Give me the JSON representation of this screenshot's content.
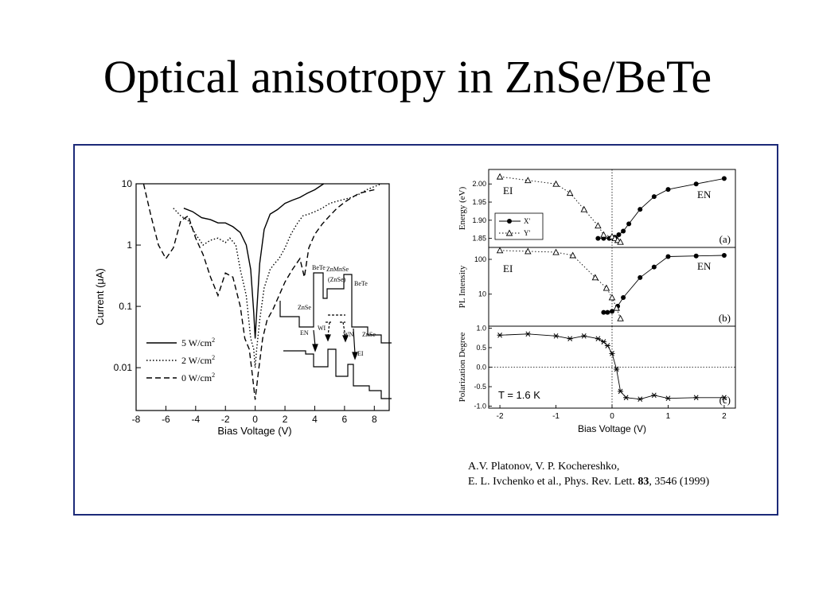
{
  "slide": {
    "title": "Optical anisotropy in ZnSe/BeTe"
  },
  "citation": {
    "line1": "A.V. Platonov, V. P. Kochereshko,",
    "line2_prefix": "E. L. Ivchenko et al.,  Phys. Rev. Lett. ",
    "volume": "83",
    "line2_suffix": ", 3546 (1999)"
  },
  "chart_data": [
    {
      "type": "line",
      "xlabel": "Bias Voltage (V)",
      "ylabel": "Current (μA)",
      "xlim": [
        -8,
        9
      ],
      "ylim": [
        0.002,
        10
      ],
      "yscale": "log",
      "xticks": [
        -8,
        -6,
        -4,
        -2,
        0,
        2,
        4,
        6,
        8
      ],
      "xtick_labels": [
        "-8",
        "-6",
        "-4",
        "-2",
        "0",
        "2",
        "4",
        "6",
        "8"
      ],
      "yticks": [
        10,
        1,
        0.1,
        0.01
      ],
      "ytick_labels": [
        "10",
        "1",
        "0.1",
        "0.01"
      ],
      "legend_position": "bottom-left",
      "series": [
        {
          "name": "5 W/cm",
          "sup": "2",
          "dash": "solid",
          "x": [
            -4.8,
            -4.2,
            -3.6,
            -3.0,
            -2.5,
            -2.0,
            -1.5,
            -1.0,
            -0.6,
            -0.3,
            -0.1,
            0.0,
            0.1,
            0.3,
            0.6,
            1.0,
            1.5,
            2.0,
            2.5,
            3.0,
            3.5,
            4.0,
            4.6
          ],
          "y": [
            4.0,
            3.5,
            2.8,
            2.6,
            2.3,
            2.3,
            2.0,
            1.6,
            1.0,
            0.4,
            0.08,
            0.03,
            0.08,
            0.5,
            1.8,
            3.2,
            3.8,
            4.8,
            5.4,
            6.0,
            7.0,
            8.0,
            10.0
          ]
        },
        {
          "name": "2 W/cm",
          "sup": "2",
          "dash": "dotted",
          "x": [
            -5.5,
            -5.0,
            -4.5,
            -4.0,
            -3.5,
            -3.0,
            -2.5,
            -2.0,
            -1.7,
            -1.3,
            -1.0,
            -0.6,
            -0.3,
            -0.1,
            0.0,
            0.1,
            0.3,
            0.6,
            1.0,
            1.3,
            1.6,
            2.0,
            2.4,
            2.8,
            3.2,
            3.6,
            4.0,
            4.5,
            5.0,
            5.5,
            6.0,
            6.5,
            7.0,
            7.5,
            8.0,
            8.5
          ],
          "y": [
            4.0,
            3.0,
            2.5,
            1.5,
            1.0,
            1.2,
            1.3,
            1.1,
            1.3,
            1.0,
            0.4,
            0.15,
            0.03,
            0.02,
            0.01,
            0.02,
            0.06,
            0.2,
            0.4,
            0.5,
            0.6,
            0.9,
            1.5,
            2.2,
            3.0,
            3.2,
            3.5,
            4.0,
            4.8,
            5.2,
            5.6,
            6.0,
            6.8,
            8.0,
            9.0,
            10.0
          ]
        },
        {
          "name": "0 W/cm",
          "sup": "2",
          "dash": "dashed",
          "x": [
            -7.5,
            -7.0,
            -6.5,
            -6.0,
            -5.5,
            -5.0,
            -4.5,
            -4.0,
            -3.5,
            -3.0,
            -2.5,
            -2.0,
            -1.5,
            -1.0,
            -0.7,
            -0.4,
            -0.2,
            0.0,
            0.2,
            0.5,
            0.8,
            1.2,
            1.6,
            2.0,
            2.5,
            3.0,
            3.3,
            3.6,
            4.0,
            4.5,
            5.0,
            5.5,
            6.0,
            6.5,
            7.0,
            7.5,
            8.0
          ],
          "y": [
            10.0,
            3.0,
            1.0,
            0.6,
            0.9,
            2.5,
            3.0,
            1.3,
            0.7,
            0.3,
            0.15,
            0.35,
            0.3,
            0.1,
            0.03,
            0.02,
            0.008,
            0.003,
            0.008,
            0.03,
            0.06,
            0.09,
            0.15,
            0.25,
            0.4,
            0.6,
            0.3,
            0.9,
            1.5,
            2.2,
            3.0,
            4.0,
            5.0,
            6.0,
            7.0,
            7.5,
            8.0
          ]
        }
      ],
      "inset": {
        "labels": [
          "BeTe",
          "ZnMnSe",
          "(ZnSe)",
          "BeTe",
          "ZnSe",
          "ZnSe",
          "EN",
          "WI",
          "WN",
          "EI"
        ]
      }
    },
    {
      "type": "line",
      "panel": "(a)",
      "ylabel": "Energy (eV)",
      "xlim": [
        -2.2,
        2.2
      ],
      "ylim": [
        1.825,
        2.04
      ],
      "yticks": [
        1.85,
        1.9,
        1.95,
        2.0
      ],
      "ytick_labels": [
        "1.85",
        "1.90",
        "1.95",
        "2.00"
      ],
      "region_labels": [
        "EI",
        "EN"
      ],
      "legend_position": "bottom-left",
      "series": [
        {
          "name": "X'",
          "marker": "filled-circle",
          "dash": "solid",
          "x": [
            -0.25,
            -0.15,
            -0.05,
            0.05,
            0.12,
            0.2,
            0.3,
            0.5,
            0.75,
            1.0,
            1.5,
            2.0
          ],
          "y": [
            1.85,
            1.85,
            1.85,
            1.853,
            1.86,
            1.87,
            1.89,
            1.93,
            1.965,
            1.985,
            2.0,
            2.015
          ]
        },
        {
          "name": "Y'",
          "marker": "open-triangle",
          "dash": "dotted",
          "x": [
            -2.0,
            -1.5,
            -1.0,
            -0.75,
            -0.5,
            -0.25,
            -0.15,
            0.0,
            0.05,
            0.1,
            0.15
          ],
          "y": [
            2.02,
            2.01,
            2.0,
            1.975,
            1.93,
            1.885,
            1.86,
            1.855,
            1.85,
            1.845,
            1.84
          ]
        }
      ]
    },
    {
      "type": "line",
      "panel": "(b)",
      "ylabel": "PL  Intensity",
      "xlim": [
        -2.2,
        2.2
      ],
      "ylim": [
        1.2,
        220
      ],
      "yscale": "log",
      "yticks": [
        10,
        100
      ],
      "ytick_labels": [
        "10",
        "100"
      ],
      "region_labels": [
        "EI",
        "EN"
      ],
      "series": [
        {
          "name": "X'",
          "marker": "filled-circle",
          "dash": "solid",
          "x": [
            -0.15,
            -0.08,
            0.0,
            0.1,
            0.2,
            0.5,
            0.75,
            1.0,
            1.5,
            2.0
          ],
          "y": [
            3.0,
            3.0,
            3.2,
            4.5,
            8.0,
            30,
            60,
            120,
            125,
            130
          ]
        },
        {
          "name": "Y'",
          "marker": "open-triangle",
          "dash": "dotted",
          "x": [
            -2.0,
            -1.5,
            -1.0,
            -0.7,
            -0.3,
            -0.1,
            0.0,
            0.08,
            0.15
          ],
          "y": [
            180,
            170,
            160,
            130,
            30,
            15,
            8,
            4,
            2
          ]
        }
      ]
    },
    {
      "type": "line",
      "panel": "(c)",
      "xlabel": "Bias Voltage (V)",
      "ylabel": "Polarization  Degree",
      "annotation": "T = 1.6 K",
      "xlim": [
        -2.2,
        2.2
      ],
      "ylim": [
        -1.05,
        1.05
      ],
      "xticks": [
        -2,
        -1,
        0,
        1,
        2
      ],
      "xtick_labels": [
        "-2",
        "-1",
        "0",
        "1",
        "2"
      ],
      "yticks": [
        1.0,
        0.5,
        0.0,
        -0.5,
        -1.0
      ],
      "ytick_labels": [
        "1.0",
        "0.5",
        "0.0",
        "-0.5",
        "-1.0"
      ],
      "series": [
        {
          "marker": "asterisk",
          "dash": "solid",
          "x": [
            -2.0,
            -1.5,
            -1.0,
            -0.75,
            -0.5,
            -0.25,
            -0.15,
            -0.08,
            0.0,
            0.08,
            0.15,
            0.25,
            0.5,
            0.75,
            1.0,
            1.5,
            2.0
          ],
          "y": [
            0.82,
            0.85,
            0.8,
            0.73,
            0.8,
            0.73,
            0.65,
            0.55,
            0.35,
            -0.05,
            -0.62,
            -0.78,
            -0.82,
            -0.72,
            -0.8,
            -0.78,
            -0.78
          ]
        }
      ]
    }
  ]
}
